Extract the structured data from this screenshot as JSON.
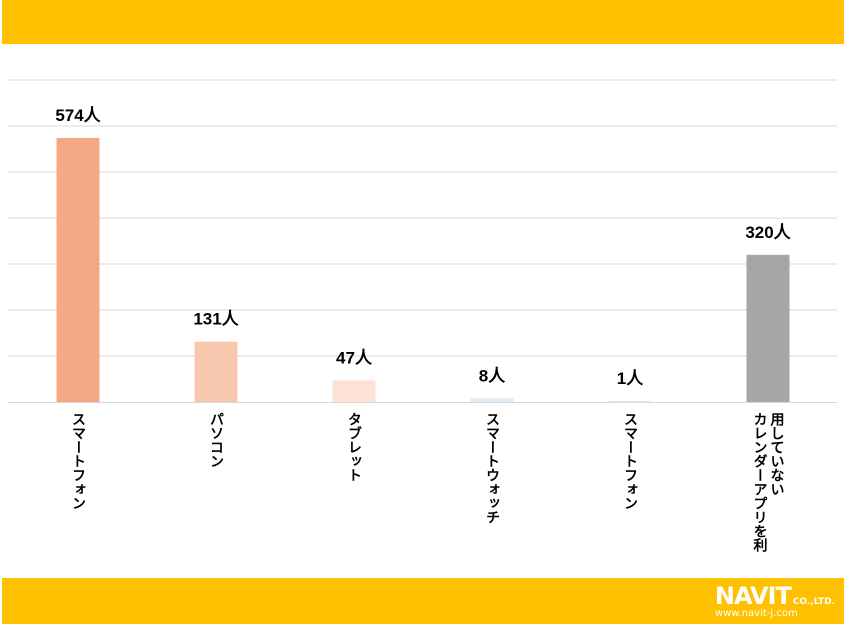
{
  "chart_data": {
    "type": "bar",
    "categories": [
      "スマートフォン",
      "パソコン",
      "タブレット",
      "スマートウォッチ",
      "スマートフォン",
      "カレンダーアプリを利用していない"
    ],
    "category_lines": [
      [
        "スマートフォン"
      ],
      [
        "パソコン"
      ],
      [
        "タブレット"
      ],
      [
        "スマートウォッチ"
      ],
      [
        "スマートフォン"
      ],
      [
        "カレンダーアプリを利",
        "用していない"
      ]
    ],
    "values": [
      574,
      131,
      47,
      8,
      1,
      320
    ],
    "data_labels": [
      "574人",
      "131人",
      "47人",
      "8人",
      "1人",
      "320人"
    ],
    "colors": [
      "#F4A984",
      "#F8C8AE",
      "#FCE2D6",
      "#DDEBF7",
      "#DDEBF7",
      "#A6A6A6"
    ],
    "ylim": [
      0,
      574
    ],
    "grid": true,
    "title": "",
    "xlabel": "",
    "ylabel": ""
  },
  "logo": {
    "brand": "NAVIT",
    "suffix": "CO.,LTD.",
    "url": "www.navit-j.com"
  }
}
